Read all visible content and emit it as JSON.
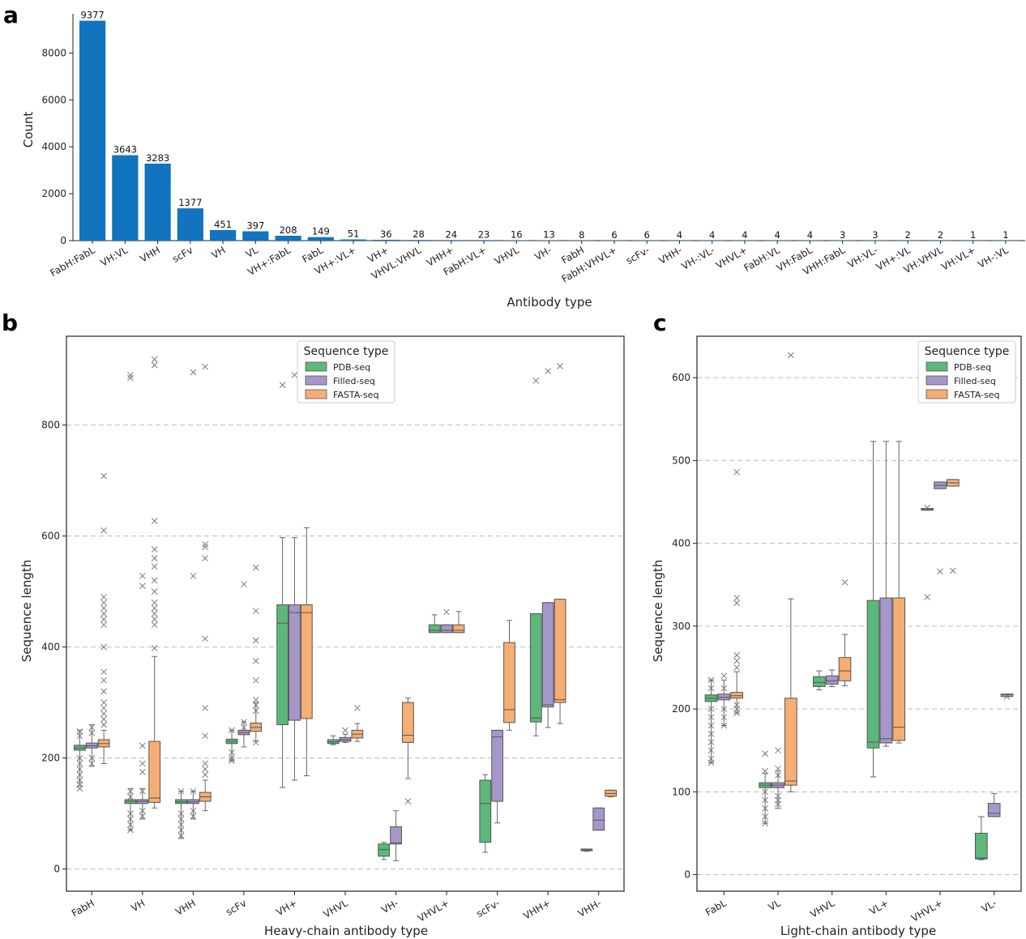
{
  "chart_data": [
    {
      "id": "a",
      "type": "bar",
      "panel_label": "a",
      "xlabel": "Antibody type",
      "ylabel": "Count",
      "ylim": [
        0,
        9500
      ],
      "yticks": [
        0,
        2000,
        4000,
        6000,
        8000
      ],
      "categories": [
        "FabH:FabL",
        "VH:VL",
        "VHH",
        "scFv",
        "VH",
        "VL",
        "VH+:FabL",
        "FabL",
        "VH+:VL+",
        "VH+",
        "VHVL:VHVL",
        "VHH+",
        "FabH:VL+",
        "VHVL",
        "VH-",
        "FabH",
        "FabH:VHVL+",
        "scFv-",
        "VHH-",
        "VH-:VL-",
        "VHVL+",
        "FabH:VL",
        "VH:FabL",
        "VHH:FabL",
        "VH:VL-",
        "VH+:VL",
        "VH:VHVL",
        "VH:VL+",
        "VH-:VL"
      ],
      "values": [
        9377,
        3643,
        3283,
        1377,
        451,
        397,
        208,
        149,
        51,
        36,
        28,
        24,
        23,
        16,
        13,
        8,
        6,
        6,
        4,
        4,
        4,
        4,
        4,
        3,
        3,
        2,
        2,
        1,
        1
      ],
      "color": "#1273be"
    },
    {
      "id": "b",
      "type": "box",
      "panel_label": "b",
      "xlabel": "Heavy-chain antibody type",
      "ylabel": "Sequence length",
      "ylim": [
        -40,
        960
      ],
      "yticks": [
        0,
        200,
        400,
        600,
        800
      ],
      "legend": {
        "title": "Sequence type",
        "position": "top-center",
        "entries": [
          "PDB-seq",
          "Filled-seq",
          "FASTA-seq"
        ]
      },
      "series_colors": [
        "#5cb87a",
        "#a697ca",
        "#f5ae73"
      ],
      "categories": [
        "FabH",
        "VH",
        "VHH",
        "scFv",
        "VH+",
        "VHVL",
        "VH-",
        "VHVL+",
        "scFv-",
        "VHH+",
        "VHH-"
      ],
      "boxes": [
        [
          {
            "whislo": 150,
            "q1": 214,
            "med": 218,
            "q3": 223,
            "whishi": 250,
            "fliers": [
              145,
              152,
              160,
              170,
              180,
              190,
              200,
              240,
              248
            ]
          },
          {
            "whislo": 185,
            "q1": 218,
            "med": 222,
            "q3": 227,
            "whishi": 260,
            "fliers": [
              190,
              200,
              245,
              255
            ]
          },
          {
            "whislo": 190,
            "q1": 220,
            "med": 226,
            "q3": 233,
            "whishi": 250,
            "fliers": [
              260,
              270,
              280,
              290,
              300,
              320,
              340,
              355,
              400,
              440,
              450,
              460,
              470,
              480,
              490,
              610,
              708
            ]
          }
        ],
        [
          {
            "whislo": 70,
            "q1": 118,
            "med": 122,
            "q3": 125,
            "whishi": 145,
            "fliers": [
              70,
              80,
              90,
              100,
              130,
              140,
              885,
              890
            ]
          },
          {
            "whislo": 90,
            "q1": 118,
            "med": 122,
            "q3": 125,
            "whishi": 145,
            "fliers": [
              95,
              105,
              140,
              175,
              190,
              222,
              510,
              528
            ]
          },
          {
            "whislo": 110,
            "q1": 120,
            "med": 128,
            "q3": 230,
            "whishi": 383,
            "fliers": [
              398,
              440,
              450,
              460,
              470,
              480,
              500,
              520,
              545,
              560,
              576,
              627,
              908,
              918
            ]
          }
        ],
        [
          {
            "whislo": 55,
            "q1": 118,
            "med": 121,
            "q3": 125,
            "whishi": 140,
            "fliers": [
              60,
              70,
              80,
              90,
              100,
              140
            ]
          },
          {
            "whislo": 90,
            "q1": 118,
            "med": 121,
            "q3": 125,
            "whishi": 140,
            "fliers": [
              95,
              105,
              140,
              528,
              895
            ]
          },
          {
            "whislo": 105,
            "q1": 122,
            "med": 130,
            "q3": 138,
            "whishi": 160,
            "fliers": [
              170,
              180,
              190,
              240,
              290,
              415,
              560,
              580,
              585,
              905
            ]
          }
        ],
        [
          {
            "whislo": 195,
            "q1": 226,
            "med": 230,
            "q3": 234,
            "whishi": 250,
            "fliers": [
              195,
              200,
              210,
              250
            ]
          },
          {
            "whislo": 220,
            "q1": 242,
            "med": 246,
            "q3": 250,
            "whishi": 265,
            "fliers": [
              255,
              265,
              513
            ]
          },
          {
            "whislo": 230,
            "q1": 248,
            "med": 255,
            "q3": 263,
            "whishi": 300,
            "fliers": [
              228,
              285,
              295,
              305,
              340,
              375,
              412,
              465,
              543
            ]
          }
        ],
        [
          {
            "whislo": 147,
            "q1": 260,
            "med": 443,
            "q3": 476,
            "whishi": 597,
            "fliers": [
              872
            ]
          },
          {
            "whislo": 160,
            "q1": 268,
            "med": 462,
            "q3": 476,
            "whishi": 597,
            "fliers": [
              890
            ]
          },
          {
            "whislo": 168,
            "q1": 271,
            "med": 462,
            "q3": 476,
            "whishi": 615,
            "fliers": []
          }
        ],
        [
          {
            "whislo": 224,
            "q1": 226,
            "med": 229,
            "q3": 233,
            "whishi": 240,
            "fliers": []
          },
          {
            "whislo": 228,
            "q1": 230,
            "med": 233,
            "q3": 237,
            "whishi": 243,
            "fliers": [
              250
            ]
          },
          {
            "whislo": 230,
            "q1": 236,
            "med": 243,
            "q3": 250,
            "whishi": 262,
            "fliers": [
              290
            ]
          }
        ],
        [
          {
            "whislo": 17,
            "q1": 23,
            "med": 35,
            "q3": 45,
            "whishi": 48,
            "fliers": []
          },
          {
            "whislo": 15,
            "q1": 45,
            "med": 47,
            "q3": 76,
            "whishi": 105,
            "fliers": []
          },
          {
            "whislo": 163,
            "q1": 228,
            "med": 241,
            "q3": 300,
            "whishi": 308,
            "fliers": [
              122
            ]
          }
        ],
        [
          {
            "whislo": 426,
            "q1": 426,
            "med": 430,
            "q3": 440,
            "whishi": 458,
            "fliers": []
          },
          {
            "whislo": 426,
            "q1": 426,
            "med": 430,
            "q3": 440,
            "whishi": 440,
            "fliers": [
              463
            ]
          },
          {
            "whislo": 426,
            "q1": 426,
            "med": 430,
            "q3": 440,
            "whishi": 464,
            "fliers": []
          }
        ],
        [
          {
            "whislo": 30,
            "q1": 48,
            "med": 118,
            "q3": 160,
            "whishi": 170,
            "fliers": []
          },
          {
            "whislo": 83,
            "q1": 122,
            "med": 238,
            "q3": 250,
            "whishi": 250,
            "fliers": []
          },
          {
            "whislo": 250,
            "q1": 264,
            "med": 287,
            "q3": 408,
            "whishi": 448,
            "fliers": []
          }
        ],
        [
          {
            "whislo": 240,
            "q1": 265,
            "med": 272,
            "q3": 460,
            "whishi": 460,
            "fliers": [
              880
            ]
          },
          {
            "whislo": 255,
            "q1": 292,
            "med": 296,
            "q3": 480,
            "whishi": 480,
            "fliers": [
              897
            ]
          },
          {
            "whislo": 262,
            "q1": 300,
            "med": 305,
            "q3": 486,
            "whishi": 486,
            "fliers": [
              906
            ]
          }
        ],
        [
          {
            "whislo": 32,
            "q1": 33,
            "med": 34,
            "q3": 36,
            "whishi": 36,
            "fliers": []
          },
          {
            "whislo": 70,
            "q1": 70,
            "med": 88,
            "q3": 110,
            "whishi": 110,
            "fliers": []
          },
          {
            "whislo": 130,
            "q1": 131,
            "med": 136,
            "q3": 142,
            "whishi": 142,
            "fliers": []
          }
        ]
      ]
    },
    {
      "id": "c",
      "type": "box",
      "panel_label": "c",
      "xlabel": "Light-chain antibody type",
      "ylabel": "Sequence length",
      "ylim": [
        -20,
        650
      ],
      "yticks": [
        0,
        100,
        200,
        300,
        400,
        500,
        600
      ],
      "legend": {
        "title": "Sequence type",
        "position": "top-right",
        "entries": [
          "PDB-seq",
          "Filled-seq",
          "FASTA-seq"
        ]
      },
      "series_colors": [
        "#5cb87a",
        "#a697ca",
        "#f5ae73"
      ],
      "categories": [
        "FabL",
        "VL",
        "VHVL",
        "VL+",
        "VHVL+",
        "VL-"
      ],
      "boxes": [
        [
          {
            "whislo": 135,
            "q1": 209,
            "med": 213,
            "q3": 217,
            "whishi": 235,
            "fliers": [
              135,
              140,
              150,
              160,
              170,
              180,
              190,
              200,
              225,
              235
            ]
          },
          {
            "whislo": 180,
            "q1": 211,
            "med": 214,
            "q3": 218,
            "whishi": 235,
            "fliers": [
              180,
              190,
              200,
              225,
              240
            ]
          },
          {
            "whislo": 195,
            "q1": 213,
            "med": 216,
            "q3": 220,
            "whishi": 245,
            "fliers": [
              195,
              200,
              205,
              250,
              258,
              265,
              328,
              334,
              486
            ]
          }
        ],
        [
          {
            "whislo": 62,
            "q1": 105,
            "med": 108,
            "q3": 111,
            "whishi": 122,
            "fliers": [
              62,
              70,
              80,
              90,
              100,
              125,
              146
            ]
          },
          {
            "whislo": 80,
            "q1": 105,
            "med": 108,
            "q3": 111,
            "whishi": 125,
            "fliers": [
              85,
              90,
              95,
              120,
              128,
              150
            ]
          },
          {
            "whislo": 100,
            "q1": 108,
            "med": 113,
            "q3": 213,
            "whishi": 333,
            "fliers": [
              627
            ]
          }
        ],
        [
          {
            "whislo": 223,
            "q1": 227,
            "med": 232,
            "q3": 239,
            "whishi": 246,
            "fliers": []
          },
          {
            "whislo": 227,
            "q1": 230,
            "med": 234,
            "q3": 240,
            "whishi": 247,
            "fliers": []
          },
          {
            "whislo": 228,
            "q1": 234,
            "med": 246,
            "q3": 262,
            "whishi": 290,
            "fliers": [
              353
            ]
          }
        ],
        [
          {
            "whislo": 118,
            "q1": 153,
            "med": 160,
            "q3": 331,
            "whishi": 523,
            "fliers": []
          },
          {
            "whislo": 155,
            "q1": 159,
            "med": 164,
            "q3": 334,
            "whishi": 523,
            "fliers": []
          },
          {
            "whislo": 159,
            "q1": 162,
            "med": 178,
            "q3": 334,
            "whishi": 523,
            "fliers": []
          }
        ],
        [
          {
            "whislo": 440,
            "q1": 440,
            "med": 441,
            "q3": 442,
            "whishi": 442,
            "fliers": [
              335,
              443
            ]
          },
          {
            "whislo": 466,
            "q1": 466,
            "med": 470,
            "q3": 474,
            "whishi": 474,
            "fliers": [
              366
            ]
          },
          {
            "whislo": 469,
            "q1": 469,
            "med": 473,
            "q3": 477,
            "whishi": 477,
            "fliers": [
              367
            ]
          }
        ],
        [
          {
            "whislo": 18,
            "q1": 19,
            "med": 20,
            "q3": 50,
            "whishi": 70,
            "fliers": []
          },
          {
            "whislo": 70,
            "q1": 70,
            "med": 74,
            "q3": 86,
            "whishi": 98,
            "fliers": []
          },
          {
            "whislo": 215,
            "q1": 215,
            "med": 217,
            "q3": 218,
            "whishi": 218,
            "fliers": [
              215
            ]
          }
        ]
      ]
    }
  ]
}
